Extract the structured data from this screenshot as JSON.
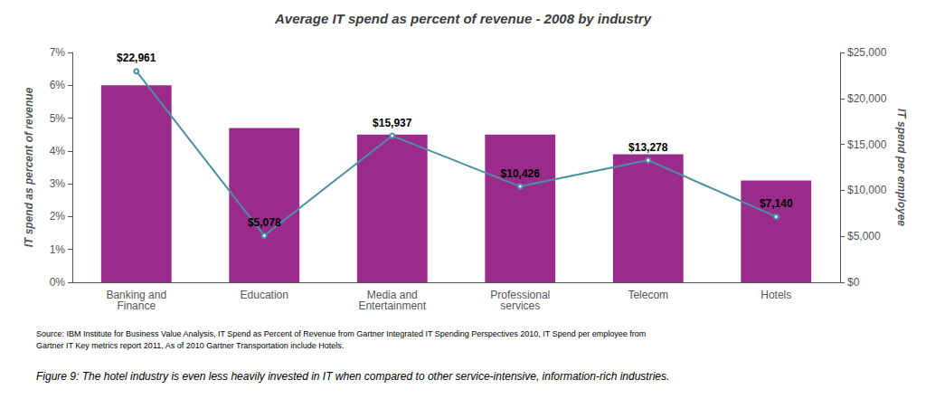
{
  "chart_data": {
    "type": "bar",
    "title": "Average IT spend as percent of revenue - 2008 by industry",
    "categories": [
      "Banking and\nFinance",
      "Education",
      "Media and\nEntertainment",
      "Professional\nservices",
      "Telecom",
      "Hotels"
    ],
    "series": [
      {
        "type": "bar",
        "color": "#9B2B8A",
        "values": [
          6.0,
          4.7,
          4.5,
          4.5,
          3.9,
          3.1
        ]
      },
      {
        "type": "line",
        "axis": "y2",
        "color": "#4A90A4",
        "values": [
          22961,
          5078,
          15937,
          10426,
          13278,
          7140
        ],
        "data_labels": true,
        "value_labels": [
          "$22,961",
          "$5,078",
          "$15,937",
          "$10,426",
          "$13,278",
          "$7,140"
        ]
      }
    ],
    "ylabel": "IT spend as percent of revenue",
    "y2label": "IT spend per employee",
    "ylim": [
      0,
      7
    ],
    "yticks": [
      {
        "value": 0,
        "label": "0%"
      },
      {
        "value": 1,
        "label": "1%"
      },
      {
        "value": 2,
        "label": "2%"
      },
      {
        "value": 3,
        "label": "3%"
      },
      {
        "value": 4,
        "label": "4%"
      },
      {
        "value": 5,
        "label": "5%"
      },
      {
        "value": 6,
        "label": "6%"
      },
      {
        "value": 7,
        "label": "7%"
      }
    ],
    "y2lim": [
      0,
      25000
    ],
    "y2ticks": [
      {
        "value": 0,
        "label": "$0"
      },
      {
        "value": 5000,
        "label": "$5,000"
      },
      {
        "value": 10000,
        "label": "$10,000"
      },
      {
        "value": 15000,
        "label": "$15,000"
      },
      {
        "value": 20000,
        "label": "$20,000"
      },
      {
        "value": 25000,
        "label": "$25,000"
      }
    ],
    "source": "Source: IBM Institute for Business Value Analysis, IT Spend as Percent of Revenue from Gartner Integrated IT Spending Perspectives 2010, IT Spend per employee from\nGartner IT Key metrics report 2011, As of 2010 Gartner Transportation include Hotels.",
    "caption": "Figure 9: The hotel industry is even less heavily invested in IT when compared to other service-intensive, information-rich industries.",
    "grid": false
  }
}
